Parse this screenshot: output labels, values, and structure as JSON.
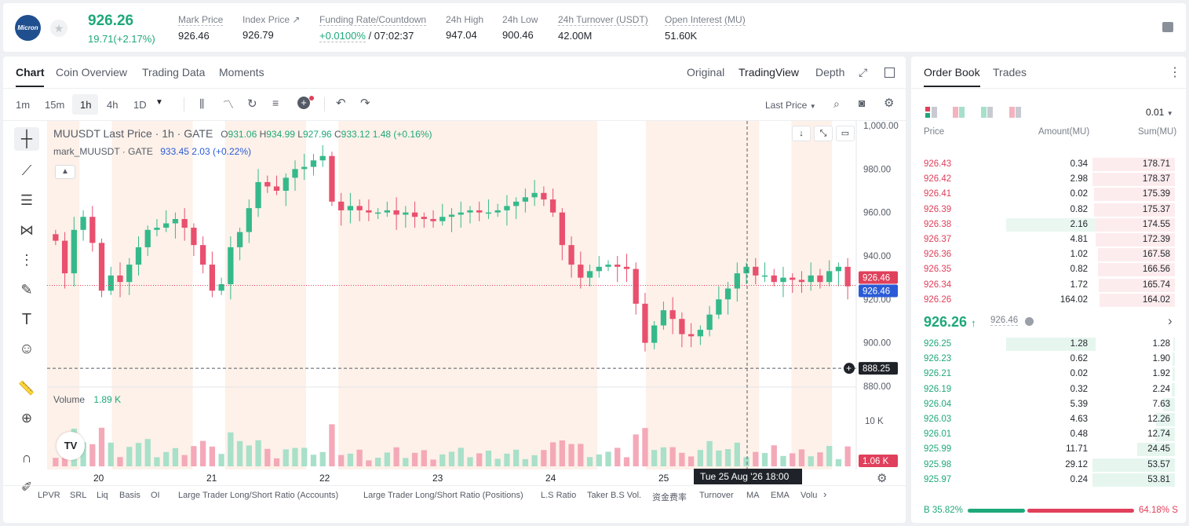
{
  "ticker": {
    "logo_text": "Micron",
    "last_price": "926.26",
    "change": "19.71(+2.17%)",
    "stats": [
      {
        "label": "Mark Price",
        "value": "926.46"
      },
      {
        "label": "Index Price ↗",
        "value": "926.79"
      },
      {
        "label": "Funding Rate/Countdown",
        "value_rate": "+0.0100%",
        "value_count": "/ 07:02:37"
      },
      {
        "label": "24h High",
        "value": "947.04"
      },
      {
        "label": "24h Low",
        "value": "900.46"
      },
      {
        "label": "24h Turnover (USDT)",
        "value": "42.00M"
      },
      {
        "label": "Open Interest (MU)",
        "value": "51.60K"
      }
    ]
  },
  "chart_tabs": {
    "left": [
      "Chart",
      "Coin Overview",
      "Trading Data",
      "Moments"
    ],
    "right": [
      "Original",
      "TradingView",
      "Depth"
    ],
    "active_left": "Chart",
    "active_right": "TradingView"
  },
  "toolbar": {
    "intervals": [
      "1m",
      "15m",
      "1h",
      "4h",
      "1D"
    ],
    "active_interval": "1h",
    "price_type": "Last Price"
  },
  "legend": {
    "symbol": "MUUSDT Last Price · 1h · GATE",
    "o": "931.06",
    "h": "934.99",
    "l": "927.96",
    "c": "933.12",
    "chg": "1.48 (+0.16%)",
    "mark_symbol": "mark_MUUSDT · GATE",
    "mark_vals": "933.45 2.03 (+0.22%)",
    "volume_label": "Volume",
    "volume_value": "1.89 K"
  },
  "chart_data": {
    "type": "candlestick",
    "y_ticks": [
      "1,000.00",
      "980.00",
      "960.00",
      "940.00",
      "920.00",
      "900.00",
      "880.00"
    ],
    "ylim": [
      880,
      1000
    ],
    "x_ticks": [
      "20",
      "21",
      "22",
      "23",
      "24",
      "25"
    ],
    "volume_tick": "10 K",
    "price_tags": {
      "last": "926.46",
      "mark": "926.46",
      "crosshair": "888.25",
      "volume": "1.06 K"
    },
    "crosshair_time": "Tue 25 Aug '26   18:00",
    "closes": [
      947,
      932,
      952,
      958,
      946,
      924,
      931,
      928,
      936,
      944,
      952,
      953,
      955,
      957,
      953,
      945,
      936,
      924,
      927,
      944,
      951,
      962,
      974,
      972,
      970,
      976,
      980,
      981,
      984,
      986,
      965,
      961,
      963,
      961,
      960,
      960,
      961,
      959,
      960,
      958,
      957,
      956,
      958,
      959,
      960,
      961,
      960,
      960,
      961,
      963,
      965,
      967,
      969,
      966,
      960,
      945,
      936,
      930,
      933,
      935,
      936,
      935,
      934,
      918,
      900,
      908,
      915,
      911,
      904,
      903,
      906,
      913,
      920,
      925,
      932,
      935,
      931,
      931,
      928,
      930,
      929,
      928,
      931,
      928,
      933,
      935,
      926
    ]
  },
  "order_book": {
    "tabs": [
      "Order Book",
      "Trades"
    ],
    "precision": "0.01",
    "headers": [
      "Price",
      "Amount(MU)",
      "Sum(MU)"
    ],
    "asks": [
      {
        "price": "926.43",
        "amount": "0.34",
        "sum": "178.71",
        "depth": 1.0,
        "amt_bar": 0
      },
      {
        "price": "926.42",
        "amount": "2.98",
        "sum": "178.37",
        "depth": 0.998,
        "amt_bar": 0
      },
      {
        "price": "926.41",
        "amount": "0.02",
        "sum": "175.39",
        "depth": 0.981,
        "amt_bar": 0
      },
      {
        "price": "926.39",
        "amount": "0.82",
        "sum": "175.37",
        "depth": 0.981,
        "amt_bar": 0
      },
      {
        "price": "926.38",
        "amount": "2.16",
        "sum": "174.55",
        "depth": 0.977,
        "amt_bar": 0.22
      },
      {
        "price": "926.37",
        "amount": "4.81",
        "sum": "172.39",
        "depth": 0.965,
        "amt_bar": 0
      },
      {
        "price": "926.36",
        "amount": "1.02",
        "sum": "167.58",
        "depth": 0.938,
        "amt_bar": 0
      },
      {
        "price": "926.35",
        "amount": "0.82",
        "sum": "166.56",
        "depth": 0.932,
        "amt_bar": 0
      },
      {
        "price": "926.34",
        "amount": "1.72",
        "sum": "165.74",
        "depth": 0.927,
        "amt_bar": 0
      },
      {
        "price": "926.26",
        "amount": "164.02",
        "sum": "164.02",
        "depth": 0.918,
        "amt_bar": 0
      }
    ],
    "mid_price": "926.26",
    "mid_mark": "926.46",
    "bids": [
      {
        "price": "926.25",
        "amount": "1.28",
        "sum": "1.28",
        "depth": 0.02,
        "amt_bar": 0.22
      },
      {
        "price": "926.23",
        "amount": "0.62",
        "sum": "1.90",
        "depth": 0.03,
        "amt_bar": 0
      },
      {
        "price": "926.21",
        "amount": "0.02",
        "sum": "1.92",
        "depth": 0.03,
        "amt_bar": 0
      },
      {
        "price": "926.19",
        "amount": "0.32",
        "sum": "2.24",
        "depth": 0.04,
        "amt_bar": 0
      },
      {
        "price": "926.04",
        "amount": "5.39",
        "sum": "7.63",
        "depth": 0.14,
        "amt_bar": 0
      },
      {
        "price": "926.03",
        "amount": "4.63",
        "sum": "12.26",
        "depth": 0.23,
        "amt_bar": 0
      },
      {
        "price": "926.01",
        "amount": "0.48",
        "sum": "12.74",
        "depth": 0.24,
        "amt_bar": 0
      },
      {
        "price": "925.99",
        "amount": "11.71",
        "sum": "24.45",
        "depth": 0.46,
        "amt_bar": 0
      },
      {
        "price": "925.98",
        "amount": "29.12",
        "sum": "53.57",
        "depth": 1.0,
        "amt_bar": 0
      },
      {
        "price": "925.97",
        "amount": "0.24",
        "sum": "53.81",
        "depth": 1.0,
        "amt_bar": 0
      }
    ],
    "buy_ratio": "B 35.82%",
    "sell_ratio": "64.18% S",
    "buy_fraction": 0.3582
  },
  "indicators": [
    "LPVR",
    "SRL",
    "Liq",
    "Basis",
    "OI",
    "Large Trader Long/Short Ratio (Accounts)",
    "Large Trader Long/Short Ratio (Positions)",
    "L.S Ratio",
    "Taker B.S Vol.",
    "资金费率",
    "Turnover",
    "MA",
    "EMA",
    "Volu"
  ],
  "colors": {
    "up": "#1fa87a",
    "down": "#e0405b",
    "candle_up": "#35b98b",
    "candle_down": "#e8506e",
    "session": "#fdf1e9"
  }
}
